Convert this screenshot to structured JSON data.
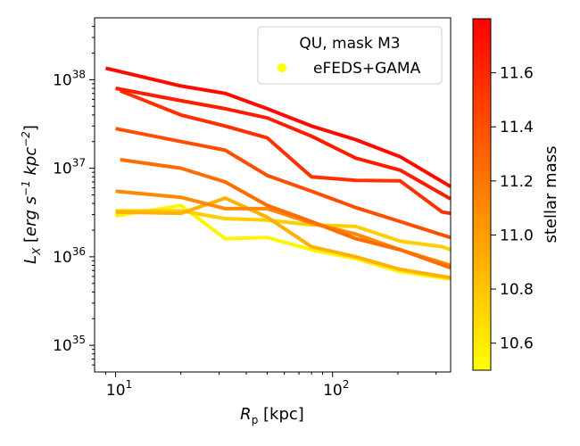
{
  "chart_data": {
    "type": "line",
    "xscale": "log",
    "yscale": "log",
    "xlim": [
      8,
      350
    ],
    "ylim": [
      5e+34,
      5e+38
    ],
    "xlabel": "R_p [kpc]",
    "ylabel": "L_X [erg s^-1 kpc^-2]",
    "x_ticks": [
      {
        "value": 10,
        "base": "10",
        "exp": "1"
      },
      {
        "value": 100,
        "base": "10",
        "exp": "2"
      }
    ],
    "y_ticks": [
      {
        "value": 1e+35,
        "base": "10",
        "exp": "35"
      },
      {
        "value": 1e+36,
        "base": "10",
        "exp": "36"
      },
      {
        "value": 1e+37,
        "base": "10",
        "exp": "37"
      },
      {
        "value": 1e+38,
        "base": "10",
        "exp": "38"
      }
    ],
    "legend": {
      "title": "QU, mask M3",
      "entry": "eFEDS+GAMA",
      "marker_color": "#ffff00",
      "placement": "upper right"
    },
    "colorbar": {
      "label": "stellar mass",
      "min": 10.5,
      "max": 11.8,
      "ticks": [
        10.6,
        10.8,
        11.0,
        11.2,
        11.4,
        11.6
      ],
      "tick_labels": [
        "10.6",
        "10.8",
        "11.0",
        "11.2",
        "11.4",
        "11.6"
      ],
      "colormap": "autumn_r",
      "color_low": "#ffff00",
      "color_high": "#ff0000"
    },
    "series": [
      {
        "mass": 11.75,
        "x": [
          9,
          20,
          32,
          50,
          80,
          128,
          205,
          350
        ],
        "y": [
          1.35e+38,
          8.5e+37,
          7e+37,
          4.7e+37,
          3e+37,
          2.1e+37,
          1.35e+37,
          6.2e+36
        ]
      },
      {
        "mass": 11.65,
        "x": [
          10,
          20,
          32,
          50,
          80,
          128,
          205,
          350
        ],
        "y": [
          8e+37,
          5.8e+37,
          4.7e+37,
          3.7e+37,
          2.3e+37,
          1.3e+37,
          9.5e+36,
          4.5e+36
        ]
      },
      {
        "mass": 11.55,
        "x": [
          10.5,
          20,
          32,
          50,
          80,
          128,
          205,
          320,
          350
        ],
        "y": [
          7.5e+37,
          4e+37,
          3e+37,
          2.2e+37,
          8e+36,
          7.3e+36,
          7.2e+36,
          3.2e+36,
          3.1e+36
        ]
      },
      {
        "mass": 11.4,
        "x": [
          10,
          20,
          32,
          50,
          80,
          128,
          205,
          350
        ],
        "y": [
          2.8e+37,
          2e+37,
          1.6e+37,
          8.3e+36,
          5.5e+36,
          3.6e+36,
          2.5e+36,
          1.65e+36
        ]
      },
      {
        "mass": 11.25,
        "x": [
          10.5,
          20,
          32,
          50,
          80,
          128,
          205,
          350
        ],
        "y": [
          1.25e+37,
          1e+37,
          7e+36,
          3.8e+36,
          2.5e+36,
          1.6e+36,
          1.2e+36,
          7.5e+35
        ]
      },
      {
        "mass": 11.1,
        "x": [
          10,
          20,
          32,
          50,
          80,
          128,
          205,
          350
        ],
        "y": [
          5.5e+36,
          4.7e+36,
          3.5e+36,
          3.5e+36,
          2.4e+36,
          1.8e+36,
          1.2e+36,
          8e+35
        ]
      },
      {
        "mass": 10.9,
        "x": [
          10,
          20,
          32,
          50,
          80,
          128,
          205,
          350
        ],
        "y": [
          3.2e+36,
          3.1e+36,
          4.6e+36,
          2.8e+36,
          1.3e+36,
          1e+36,
          7.2e+35,
          5.8e+35
        ]
      },
      {
        "mass": 10.75,
        "x": [
          10,
          20,
          32,
          50,
          80,
          128,
          205,
          320,
          350
        ],
        "y": [
          3.3e+36,
          3.3e+36,
          2.7e+36,
          2.6e+36,
          2.3e+36,
          2.2e+36,
          1.5e+36,
          1.3e+36,
          1.2e+36
        ]
      },
      {
        "mass": 10.55,
        "x": [
          10,
          20,
          32,
          50,
          80,
          128,
          205,
          350
        ],
        "y": [
          2.9e+36,
          3.8e+36,
          1.6e+36,
          1.65e+36,
          1.2e+36,
          9.5e+35,
          6.8e+35,
          5.6e+35
        ]
      }
    ]
  }
}
